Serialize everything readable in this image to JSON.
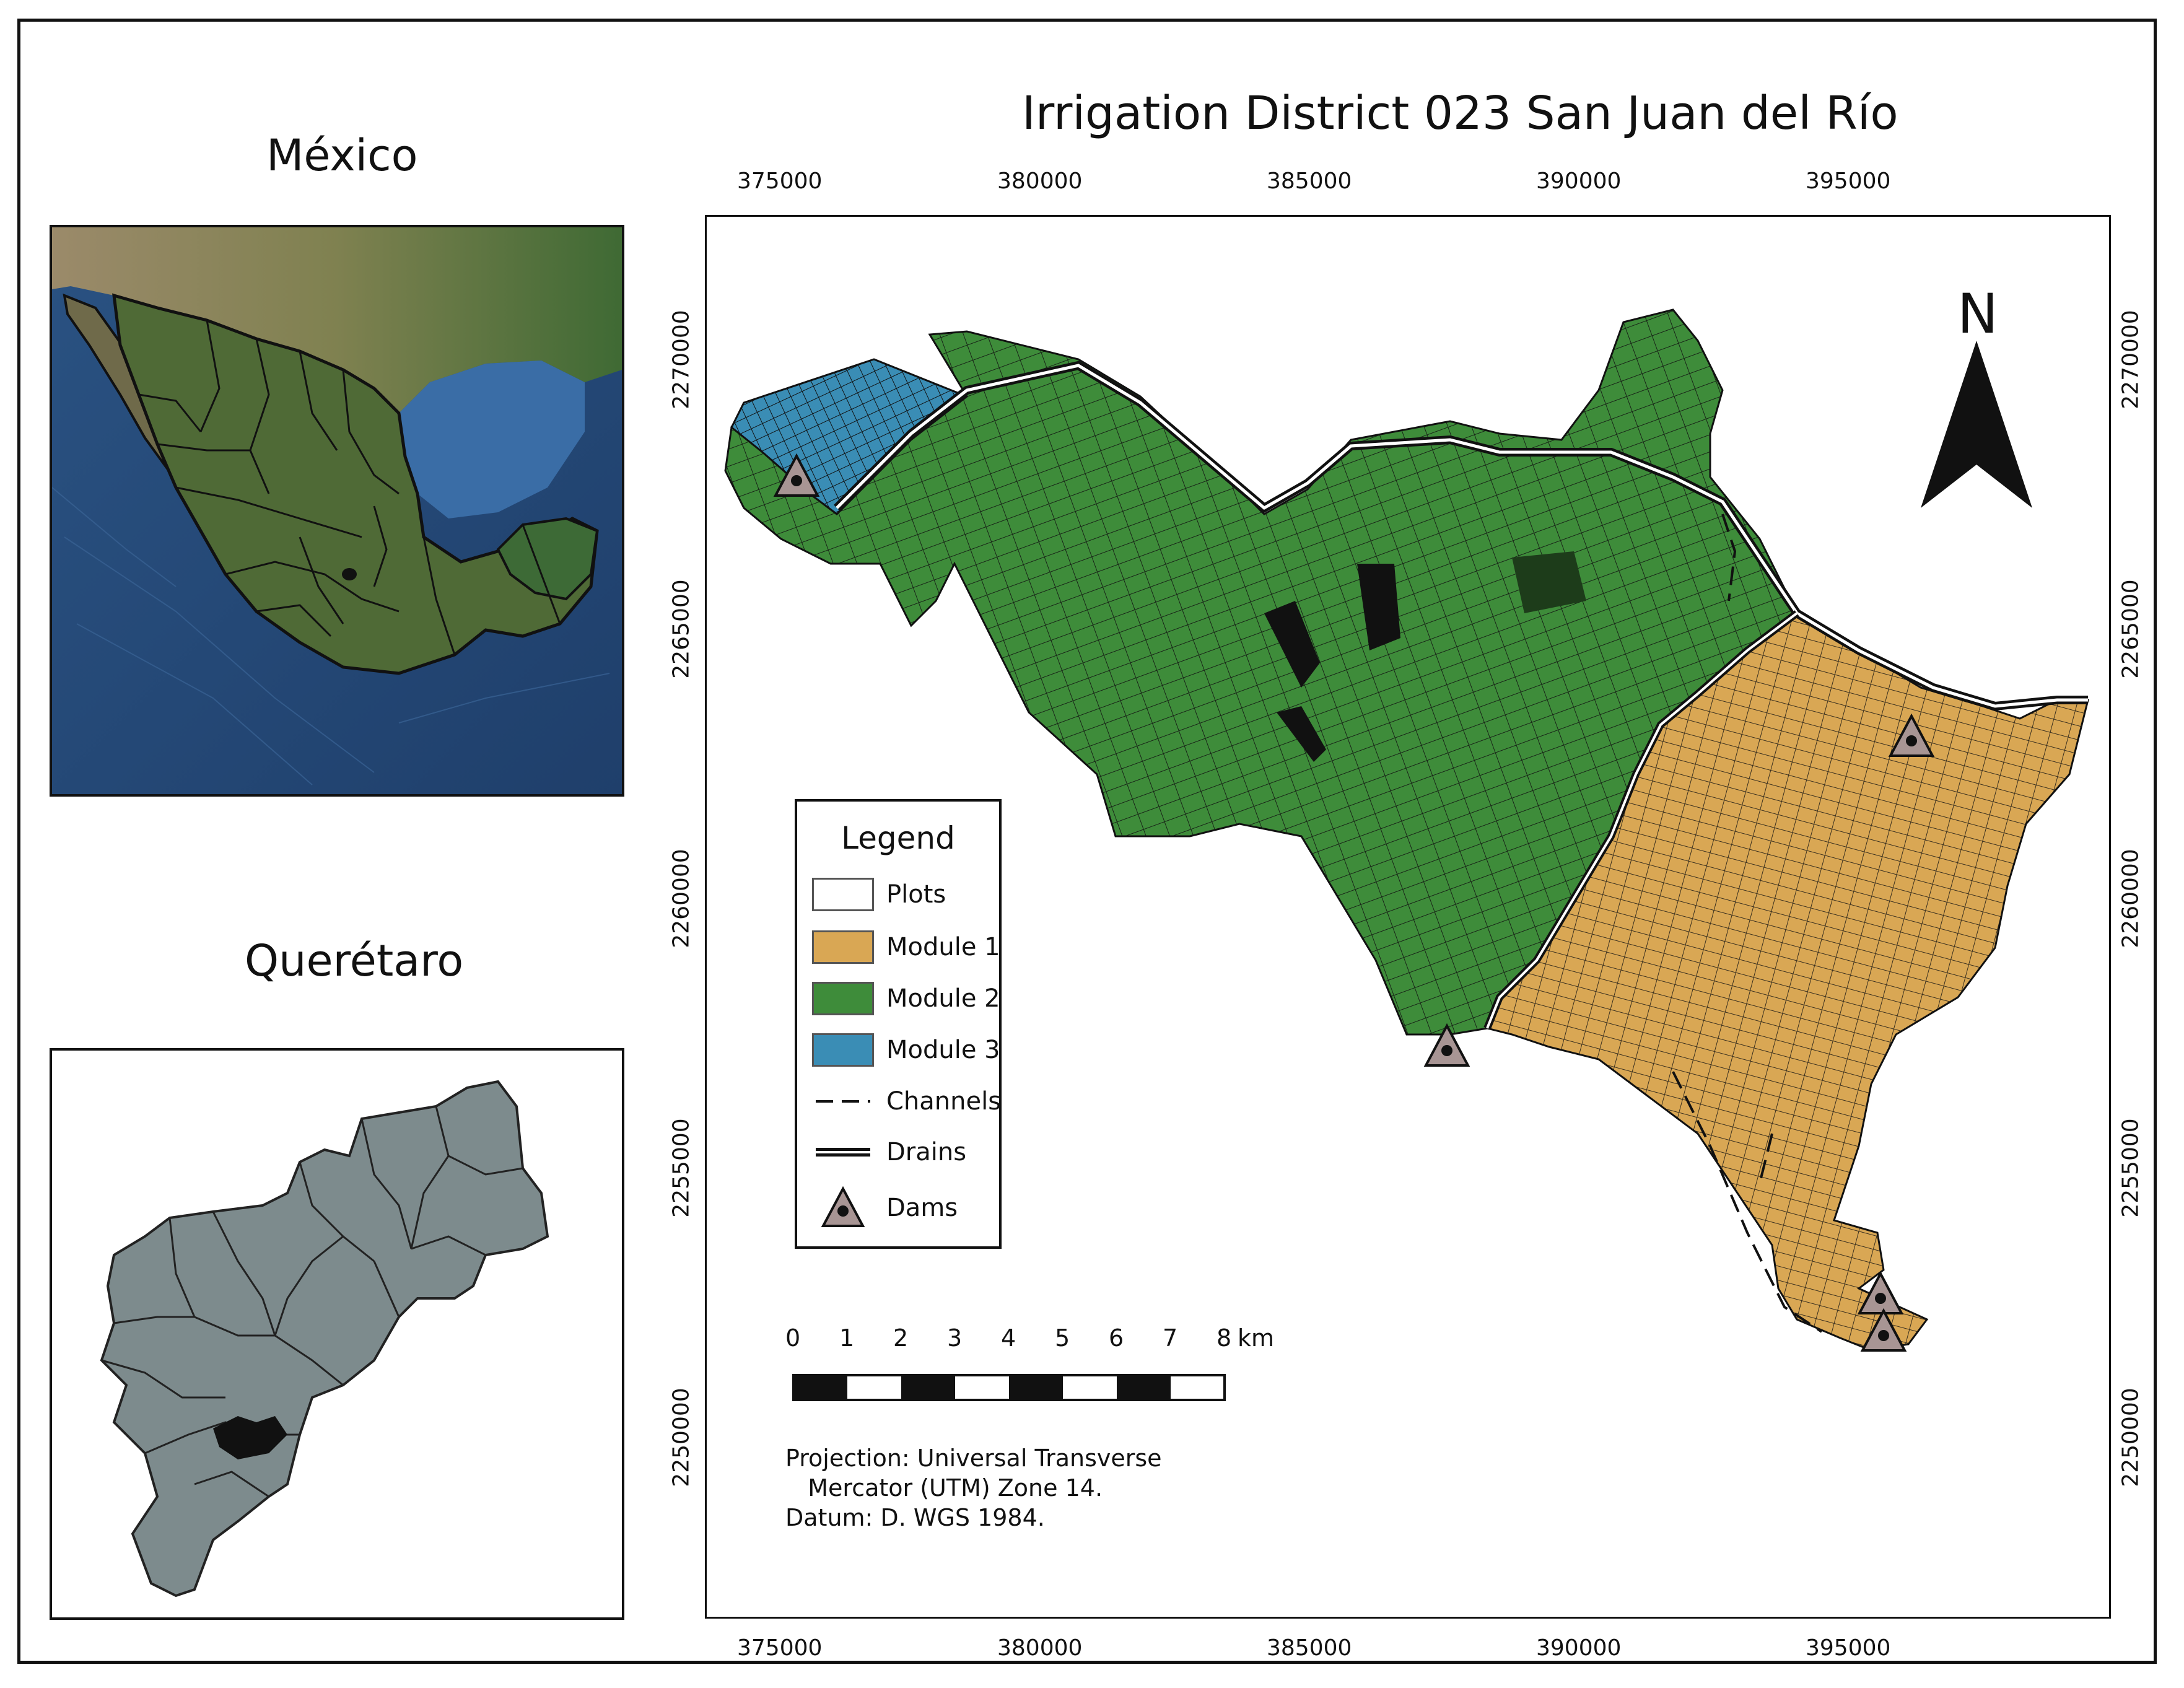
{
  "titles": {
    "mexico": "México",
    "queretaro": "Querétaro",
    "main": "Irrigation District 023 San Juan del Río"
  },
  "axes": {
    "x_ticks": [
      "375000",
      "380000",
      "385000",
      "390000",
      "395000"
    ],
    "y_ticks": [
      "2270000",
      "2265000",
      "2260000",
      "2255000",
      "2250000"
    ]
  },
  "legend": {
    "title": "Legend",
    "items": [
      {
        "label": "Plots",
        "symbol": "box",
        "color": "#ffffff"
      },
      {
        "label": "Module 1",
        "symbol": "box",
        "color": "#d9a754"
      },
      {
        "label": "Module 2",
        "symbol": "box",
        "color": "#3e8c3a"
      },
      {
        "label": "Module 3",
        "symbol": "box",
        "color": "#3a8db5"
      },
      {
        "label": "Channels",
        "symbol": "dashed-line",
        "color": "#111111"
      },
      {
        "label": "Drains",
        "symbol": "double-line",
        "color": "#111111"
      },
      {
        "label": "Dams",
        "symbol": "triangle",
        "color": "#a89594"
      }
    ]
  },
  "scale_bar": {
    "labels": [
      "0",
      "1",
      "2",
      "3",
      "4",
      "5",
      "6",
      "7",
      "8"
    ],
    "unit": "km"
  },
  "projection_note": "Projection: Universal Transverse\n   Mercator (UTM) Zone 14.\nDatum: D. WGS 1984.",
  "north_arrow": {
    "label": "N"
  },
  "colors": {
    "module1": "#d9a754",
    "module2": "#3e8c3a",
    "module3": "#3a8db5",
    "dam": "#a89594",
    "queretaro_fill": "#7d8b8d",
    "ocean": "#2f5c8f",
    "land": "#5d6a3a"
  },
  "icons": [
    "north-arrow-icon",
    "dam-icon"
  ]
}
